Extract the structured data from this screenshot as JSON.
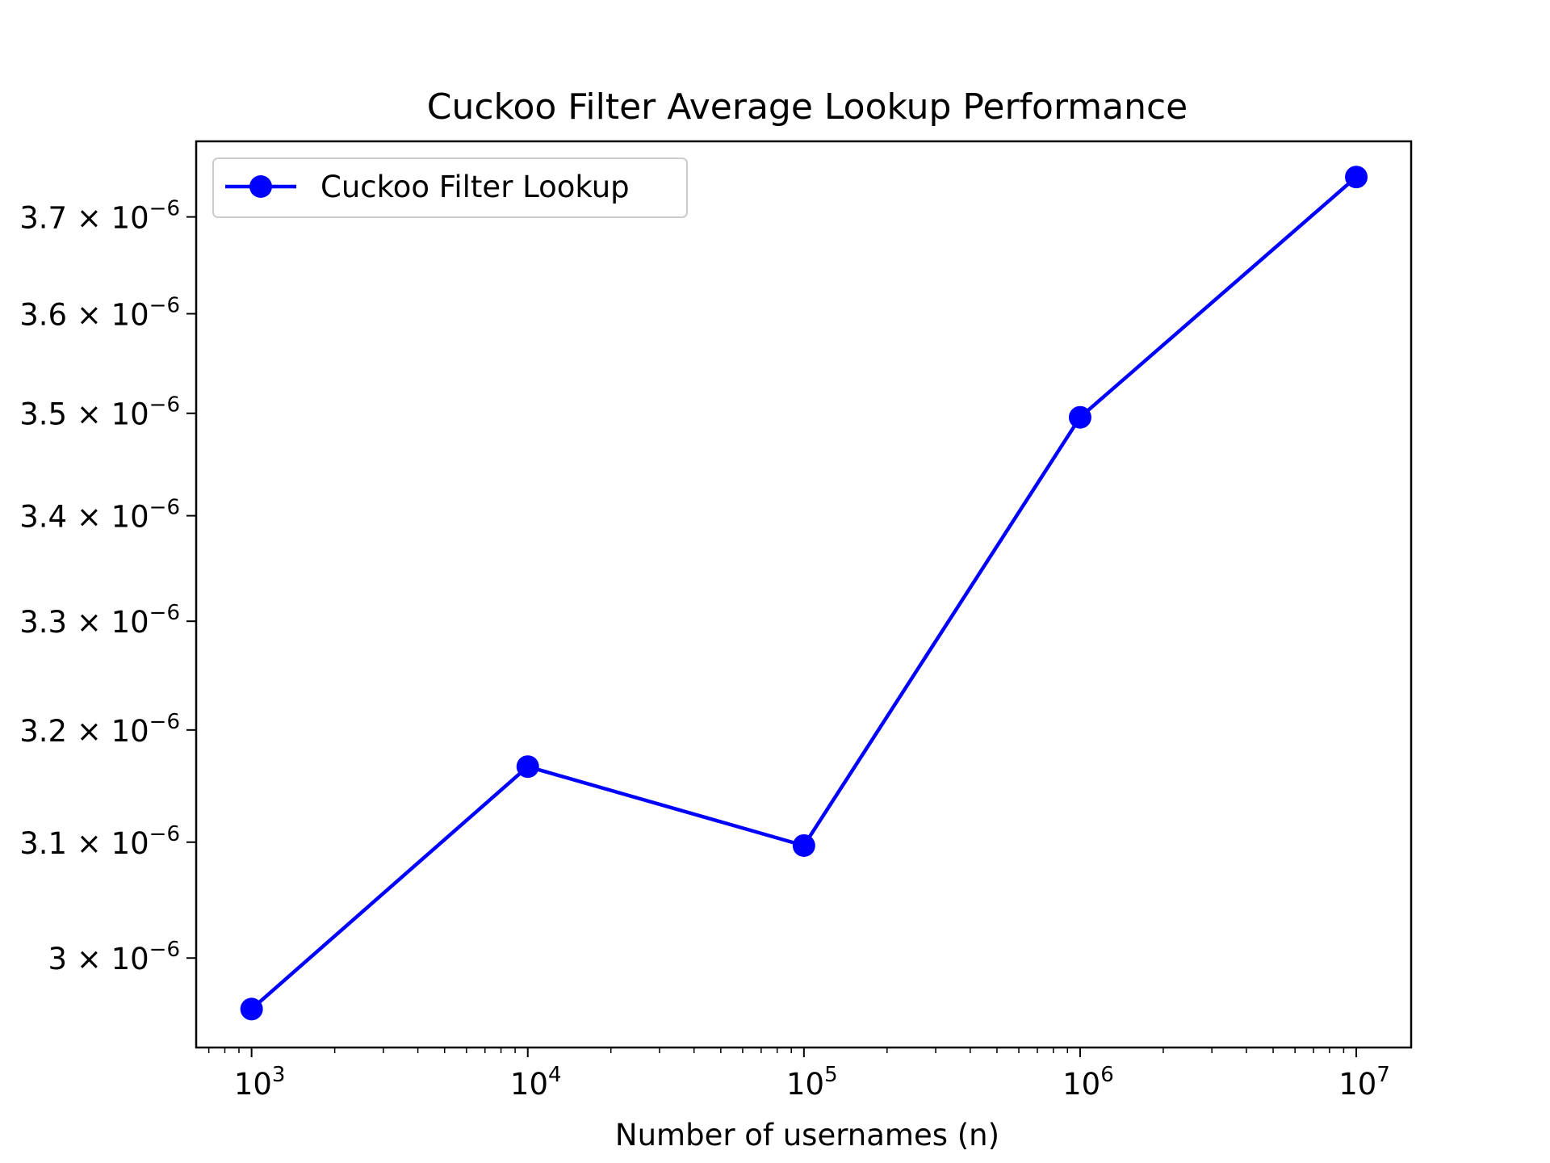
{
  "chart_data": {
    "type": "line",
    "title": "Cuckoo Filter Average Lookup Performance",
    "xlabel": "Number of usernames (n)",
    "ylabel": "",
    "x_scale": "log",
    "y_scale": "log",
    "xlim": [
      630,
      15800000
    ],
    "ylim": [
      2.925e-06,
      3.78e-06
    ],
    "x_ticks": [
      {
        "value": 1000,
        "base": "10",
        "exp": "3"
      },
      {
        "value": 10000,
        "base": "10",
        "exp": "4"
      },
      {
        "value": 100000,
        "base": "10",
        "exp": "5"
      },
      {
        "value": 1000000,
        "base": "10",
        "exp": "6"
      },
      {
        "value": 10000000,
        "base": "10",
        "exp": "7"
      }
    ],
    "y_ticks": [
      {
        "value": 3e-06,
        "mant": "3",
        "exp": "−6"
      },
      {
        "value": 3.1e-06,
        "mant": "3.1",
        "exp": "−6"
      },
      {
        "value": 3.2e-06,
        "mant": "3.2",
        "exp": "−6"
      },
      {
        "value": 3.3e-06,
        "mant": "3.3",
        "exp": "−6"
      },
      {
        "value": 3.4e-06,
        "mant": "3.4",
        "exp": "−6"
      },
      {
        "value": 3.5e-06,
        "mant": "3.5",
        "exp": "−6"
      },
      {
        "value": 3.6e-06,
        "mant": "3.6",
        "exp": "−6"
      },
      {
        "value": 3.7e-06,
        "mant": "3.7",
        "exp": "−6"
      }
    ],
    "grid": false,
    "legend_position": "top-left",
    "series": [
      {
        "name": "Cuckoo Filter Lookup",
        "color": "#0000ff",
        "marker": "circle",
        "x": [
          1000,
          10000,
          100000,
          1000000,
          10000000
        ],
        "y": [
          2.957e-06,
          3.167e-06,
          3.097e-06,
          3.496e-06,
          3.742e-06
        ]
      }
    ]
  }
}
